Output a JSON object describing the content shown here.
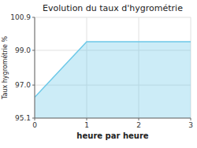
{
  "chart_data": {
    "type": "area",
    "title": "Evolution du taux d'hygrométrie",
    "xlabel": "heure par heure",
    "ylabel": "Taux hygrométrie %",
    "x": [
      0,
      1,
      2,
      3
    ],
    "values": [
      96.3,
      99.5,
      99.5,
      99.5
    ],
    "color": "#6cc8e8",
    "xlim": [
      0,
      3
    ],
    "ylim": [
      95.1,
      100.9
    ],
    "xticks": [
      0,
      1,
      2,
      3
    ],
    "yticks": [
      95.1,
      {
        "value": 97.0,
        "label": "97.0"
      },
      {
        "value": 99.0,
        "label": "99.0"
      },
      100.9
    ],
    "grid": true
  }
}
